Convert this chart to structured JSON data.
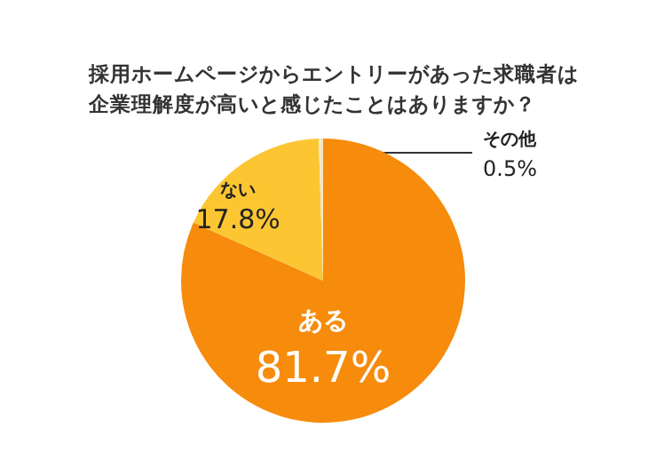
{
  "chart_data": {
    "type": "pie",
    "title": "採用ホームページからエントリーがあった求職者は企業理解度が高いと感じたことはありますか？",
    "categories": [
      "ある",
      "ない",
      "その他"
    ],
    "values": [
      81.7,
      17.8,
      0.5
    ],
    "value_labels": [
      "81.7%",
      "17.8%",
      "0.5%"
    ],
    "colors": [
      "#f68b0c",
      "#fbc632",
      "#f3e7c6"
    ],
    "legend": false
  }
}
